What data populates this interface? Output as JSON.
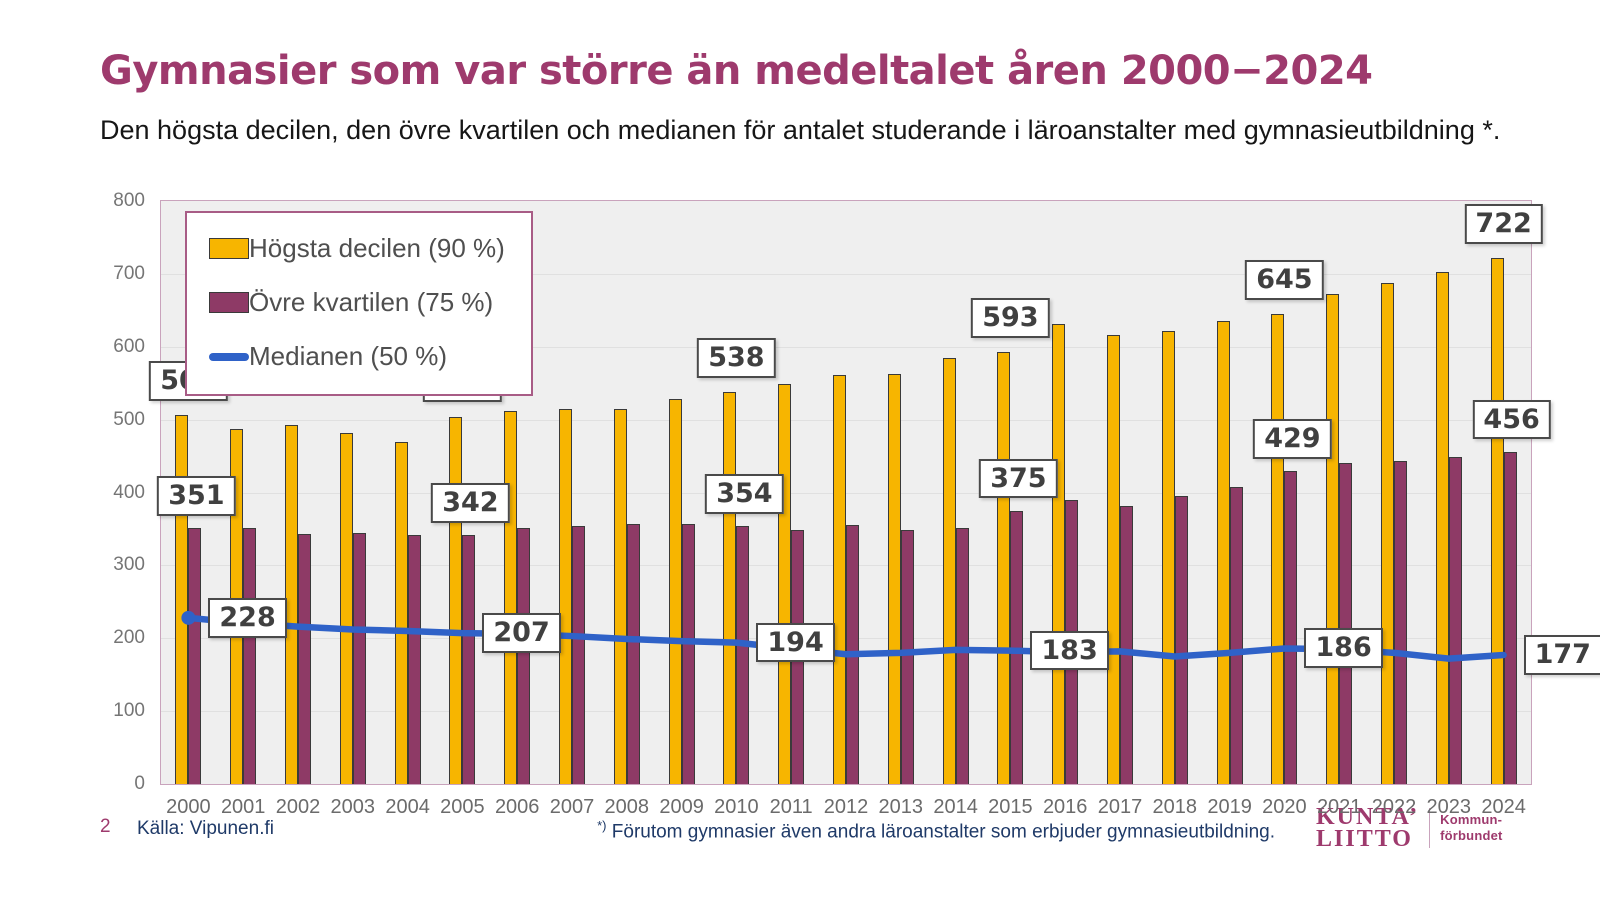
{
  "header": {
    "title": "Gymnasier som var större än medeltalet åren 2000−2024",
    "subtitle": "Den högsta decilen, den övre kvartilen och medianen för antalet studerande i läroanstalter med gymnasieutbildning *."
  },
  "footer": {
    "page_number": "2",
    "source": "Källa: Vipunen.fi",
    "footnote_marker": "*)",
    "footnote": "Förutom gymnasier även andra läroanstalter som erbjuder gymnasieutbildning."
  },
  "logo": {
    "line1": "KUNTA’",
    "line2": "LIITTO",
    "right_line1": "Kommun-",
    "right_line2": "förbundet"
  },
  "colors": {
    "title": "#9E3A6D",
    "decile_bar": "#F7B500",
    "quartile_bar": "#8E3A66",
    "median_line": "#2F62C8",
    "bar_outline": "#3A3A3A",
    "plot_background": "#EFEFEF",
    "gridline": "#E0E0E0",
    "plot_border": "#C9A3BC",
    "label_box_border": "#4A4A4A",
    "axis_text": "#757575",
    "footer_text": "#1F3A68"
  },
  "chart_data": {
    "type": "bar",
    "subtype": "grouped bars with line overlay",
    "categories": [
      "2000",
      "2001",
      "2002",
      "2003",
      "2004",
      "2005",
      "2006",
      "2007",
      "2008",
      "2009",
      "2010",
      "2011",
      "2012",
      "2013",
      "2014",
      "2015",
      "2016",
      "2017",
      "2018",
      "2019",
      "2020",
      "2021",
      "2022",
      "2023",
      "2024"
    ],
    "series": [
      {
        "name": "Högsta decilen (90 %)",
        "type": "bar",
        "color": "#F7B500",
        "values": [
          506,
          487,
          493,
          481,
          470,
          504,
          512,
          515,
          514,
          529,
          538,
          549,
          561,
          562,
          584,
          593,
          631,
          616,
          621,
          635,
          645,
          672,
          688,
          702,
          722
        ]
      },
      {
        "name": "Övre kvartilen (75 %)",
        "type": "bar",
        "color": "#8E3A66",
        "values": [
          351,
          351,
          343,
          345,
          342,
          342,
          351,
          354,
          357,
          357,
          354,
          348,
          356,
          349,
          351,
          375,
          390,
          382,
          395,
          408,
          429,
          440,
          443,
          449,
          456
        ]
      },
      {
        "name": "Medianen (50 %)",
        "type": "line",
        "color": "#2F62C8",
        "values": [
          228,
          221,
          216,
          212,
          210,
          207,
          206,
          203,
          199,
          196,
          194,
          186,
          178,
          180,
          184,
          183,
          181,
          182,
          175,
          180,
          186,
          185,
          180,
          172,
          177
        ]
      }
    ],
    "labeled_categories": [
      "2000",
      "2005",
      "2010",
      "2015",
      "2020",
      "2024"
    ],
    "annotations": [
      {
        "category": "2000",
        "labels": {
          "decile": 506,
          "quartile": 351,
          "median": 228
        }
      },
      {
        "category": "2005",
        "labels": {
          "decile": 504,
          "quartile": 342,
          "median": 207
        }
      },
      {
        "category": "2010",
        "labels": {
          "decile": 538,
          "quartile": 354,
          "median": 194
        }
      },
      {
        "category": "2015",
        "labels": {
          "decile": 593,
          "quartile": 375,
          "median": 183
        }
      },
      {
        "category": "2020",
        "labels": {
          "decile": 645,
          "quartile": 429,
          "median": 186
        }
      },
      {
        "category": "2024",
        "labels": {
          "decile": 722,
          "quartile": 456,
          "median": 177
        }
      }
    ],
    "ylim": [
      0,
      800
    ],
    "ytick_step": 100,
    "xlabel": "",
    "ylabel": "",
    "grid": true,
    "legend_position": "top-left"
  }
}
